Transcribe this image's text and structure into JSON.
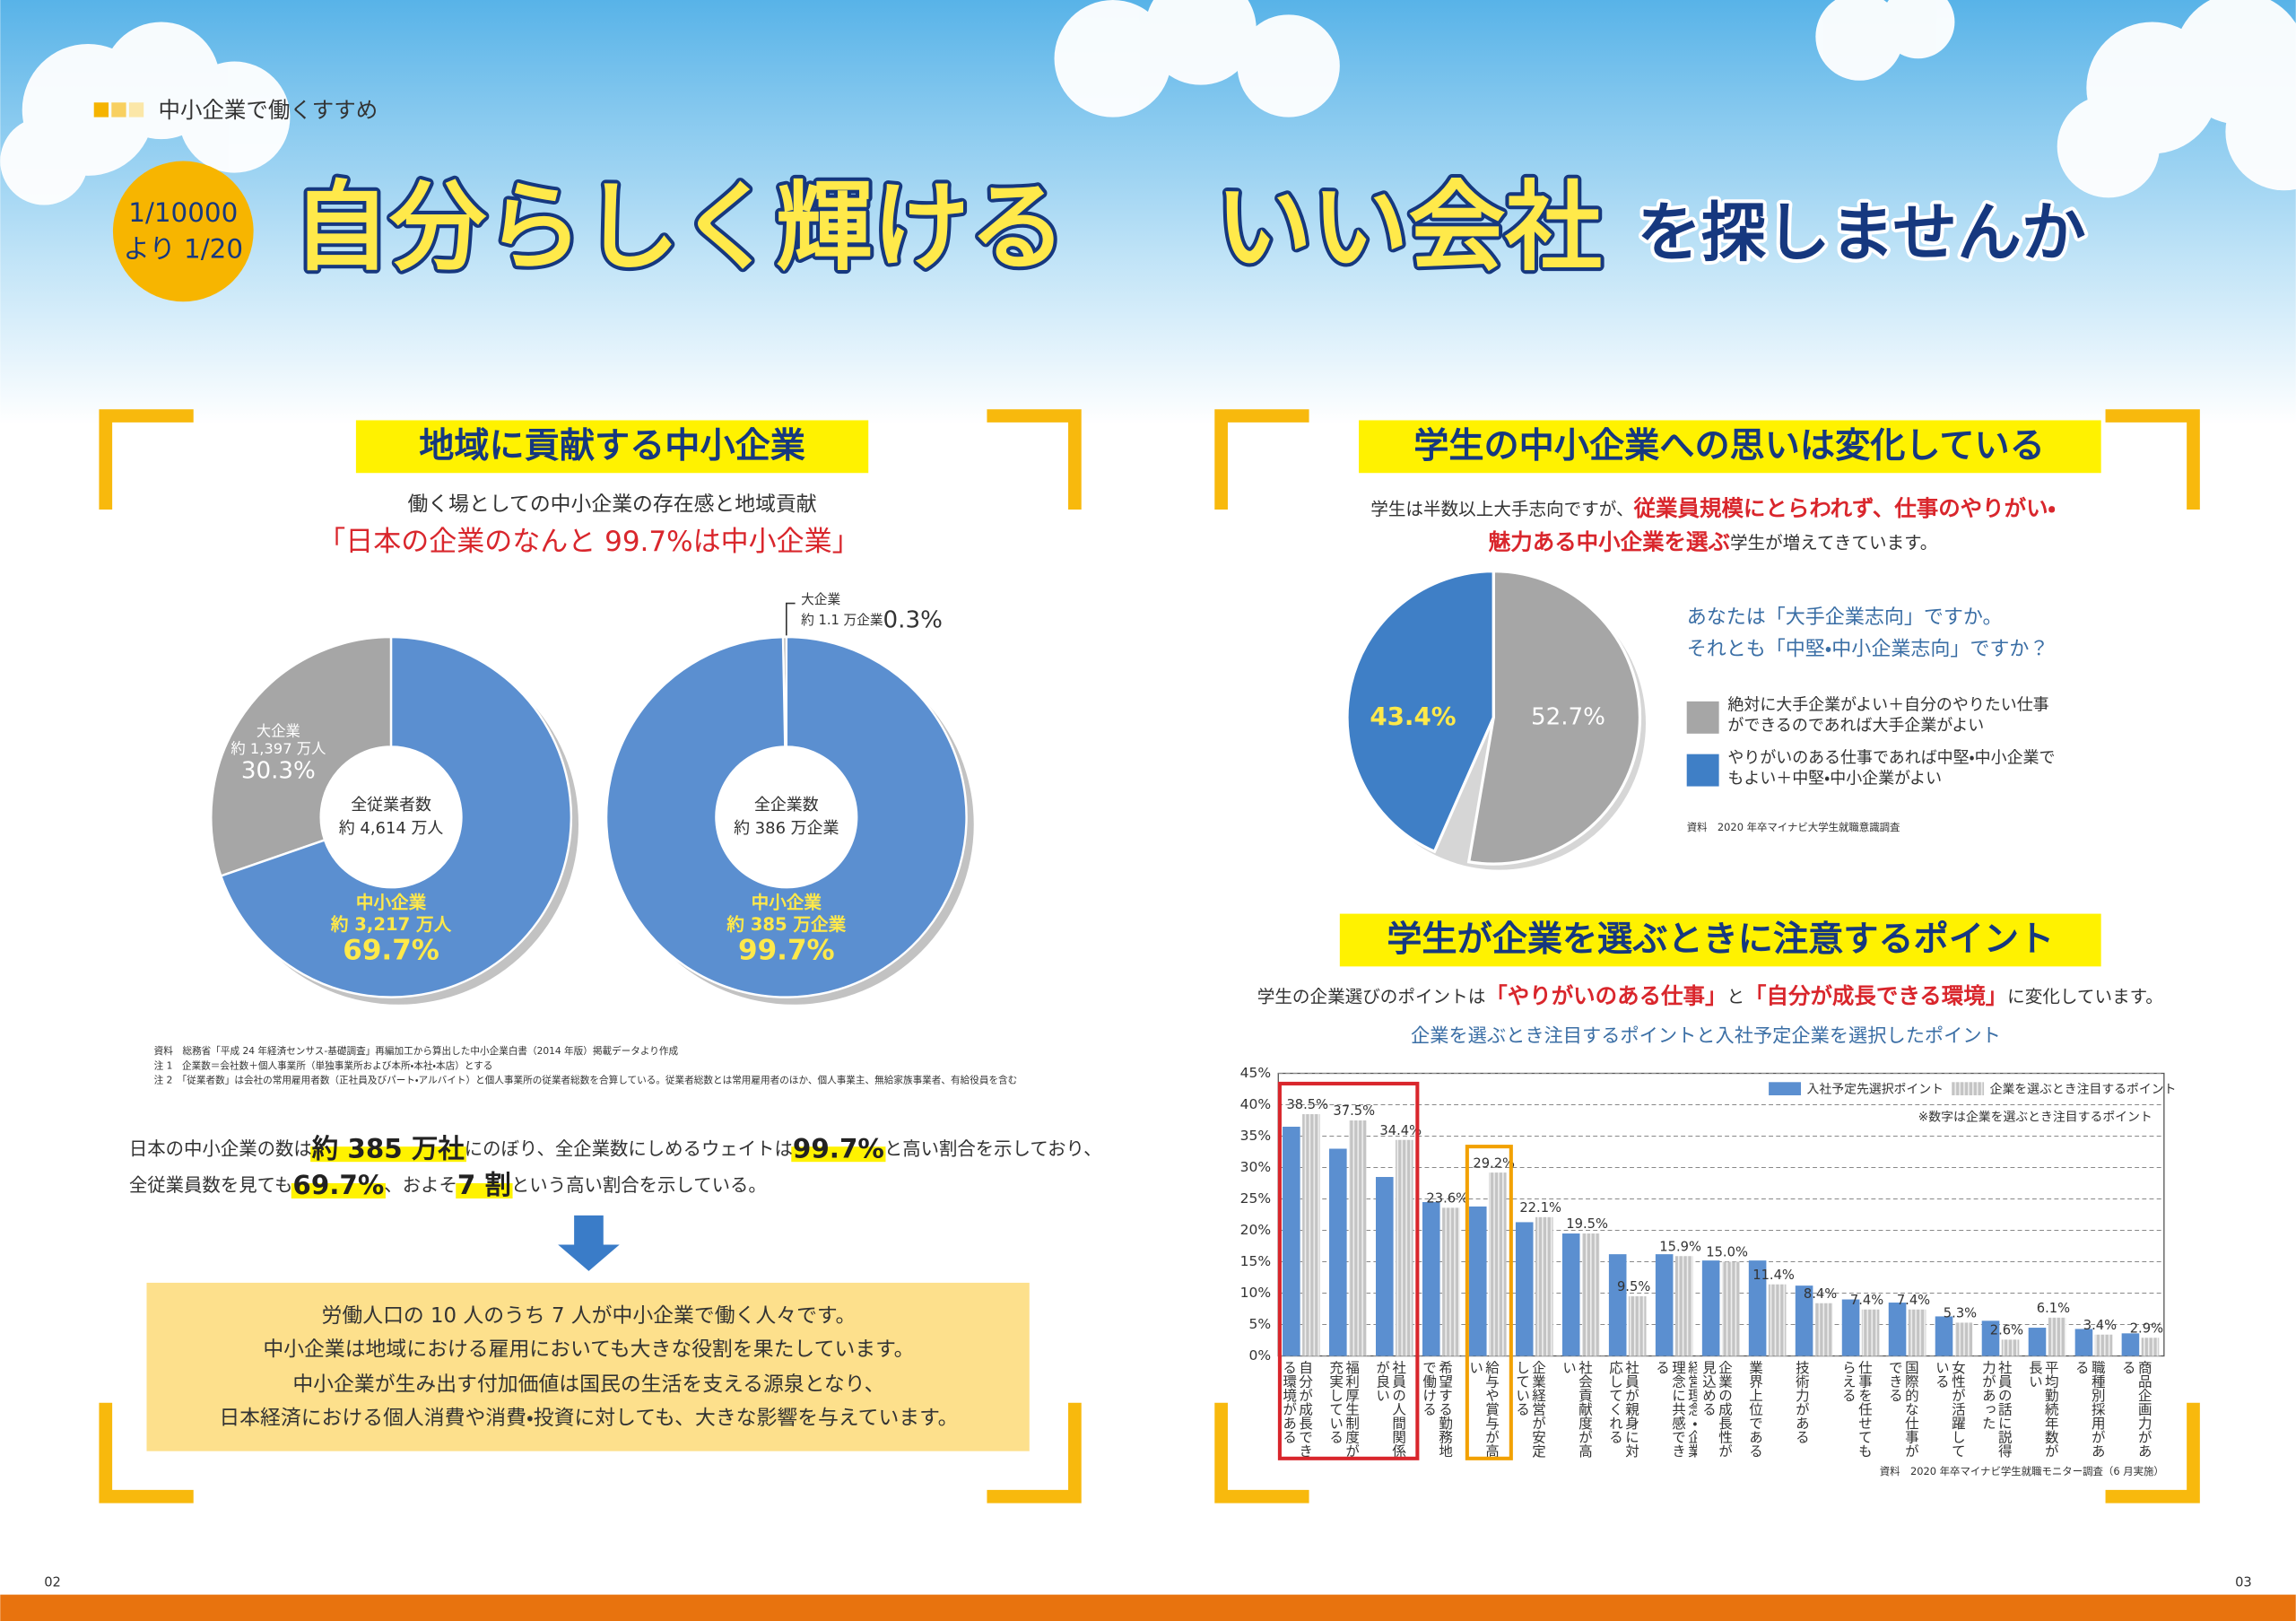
{
  "header": {
    "section": "中小企業で働くすすめ",
    "badge": [
      "1/10000",
      "より 1/20"
    ],
    "title": [
      "自分らしく輝ける",
      "いい会社",
      "を探しませんか"
    ]
  },
  "left": {
    "heading": "地域に貢献する中小企業",
    "subtitle": "働く場としての中小企業の存在感と地域貢献",
    "highlight": "「日本の企業のなんと 99.7%は中小企業」",
    "notes": [
      "資料　総務省「平成 24 年経済センサス‐基礎調査」再編加工から算出した中小企業白書（2014 年版）掲載データより作成",
      "注 1　企業数＝会社数＋個人事業所（単独事業所および本所・本社・本店）とする",
      "注 2　「従業者数」は会社の常用雇用者数（正社員及びパート・アルバイト）と個人事業所の従業者総数を合算している。従業者総数とは常用雇用者のほか、個人事業主、無給家族事業者、有給役員を含む"
    ],
    "paragraph": [
      [
        "日本の中小企業の数は",
        "約 385 万社",
        "にのぼり、全企業数にしめるウェイトは",
        "99.7%",
        "と高い割合を示しており、"
      ],
      [
        "全従業員数を見ても",
        "69.7%",
        "、およそ",
        "7 割",
        "という高い割合を示している。"
      ]
    ],
    "box": [
      "労働人口の 10 人のうち 7 人が中小企業で働く人々です。",
      "中小企業は地域における雇用においても大きな役割を果たしています。",
      "中小企業が生み出す付加価値は国民の生活を支える源泉となり、",
      "日本経済における個人消費や消費・投資に対しても、大きな影響を与えています。"
    ]
  },
  "right": {
    "heading": "学生の中小企業への思いは変化している",
    "intro": [
      [
        "学生は半数以上大手志向ですが、",
        "従業員規模にとらわれず、仕事のやりがい・"
      ],
      [
        "魅力ある中小企業を選ぶ",
        "学生が増えてきています。"
      ]
    ],
    "question": [
      "あなたは「大手企業志向」ですか。",
      "それとも「中堅・中小企業志向」ですか？"
    ],
    "pie_source": "資料　2020 年卒マイナビ大学生就職意識調査",
    "heading2": "学生が企業を選ぶときに注意するポイント",
    "intro2": [
      "学生の企業選びのポイントは",
      "「やりがいのある仕事」",
      "と",
      "「自分が成長できる環境」",
      "に変化しています。"
    ]
  },
  "page_numbers": [
    "02",
    "03"
  ],
  "chart_data": [
    {
      "type": "donut",
      "center_label": [
        "全従業者数",
        "約 4,614 万人"
      ],
      "categories": [
        "大企業",
        "中小企業"
      ],
      "amounts": [
        "約 1,397 万人",
        "約 3,217 万人"
      ],
      "values": [
        30.3,
        69.7
      ],
      "value_labels": [
        "30.3%",
        "69.7%"
      ],
      "colors": [
        "#a6a6a6",
        "#5b8fd0"
      ]
    },
    {
      "type": "donut",
      "center_label": [
        "全企業数",
        "約 386 万企業"
      ],
      "categories": [
        "大企業",
        "中小企業"
      ],
      "amounts": [
        "約 1.1 万企業",
        "約 385 万企業"
      ],
      "values": [
        0.3,
        99.7
      ],
      "value_labels": [
        "0.3%",
        "99.7%"
      ],
      "colors": [
        "#a6a6a6",
        "#5b8fd0"
      ]
    },
    {
      "type": "pie",
      "categories": [
        "絶対に大手企業がよい＋自分のやりたい仕事ができるのであれば大手企業がよい",
        "やりがいのある仕事であれば中堅・中小企業でもよい＋中堅・中小企業がよい"
      ],
      "values": [
        52.7,
        43.4
      ],
      "value_labels": [
        "52.7%",
        "43.4%"
      ],
      "colors": [
        "#a6a6a6",
        "#3f7fc6"
      ]
    },
    {
      "type": "bar",
      "title": "企業を選ぶとき注目するポイントと入社予定企業を選択したポイント",
      "note": "※数字は企業を選ぶとき注目するポイント",
      "source": "資料　2020 年卒マイナビ学生就職モニター調査（6 月実施）",
      "categories": [
        "自分が成長できる環境がある",
        "福利厚生制度が充実している",
        "社員の人間関係が良い",
        "希望する勤務地で働ける",
        "給与や賞与が高い",
        "企業経営が安定している",
        "社会貢献度が高い",
        "社員が親身に対応してくれる",
        "経営理念・企業理念に共感できる",
        "企業の成長性が見込める",
        "業界上位である",
        "技術力がある",
        "仕事を任せてもらえる",
        "国際的な仕事ができる",
        "女性が活躍している",
        "社員の話に説得力があった",
        "平均勤続年数が長い",
        "職種別採用がある",
        "商品企画力がある"
      ],
      "series": [
        {
          "name": "入社予定先選択ポイント",
          "color": "#5b8fd0",
          "values": [
            36.5,
            33.0,
            28.5,
            24.5,
            23.8,
            21.3,
            19.5,
            16.2,
            16.2,
            15.2,
            15.2,
            11.2,
            9.0,
            8.5,
            6.3,
            5.6,
            4.5,
            4.3,
            3.6
          ]
        },
        {
          "name": "企業を選ぶとき注目するポイント",
          "color": "#c4c4c4",
          "values": [
            38.5,
            37.5,
            34.4,
            23.6,
            29.2,
            22.1,
            19.5,
            9.5,
            15.9,
            15.0,
            11.4,
            8.4,
            7.4,
            7.4,
            5.3,
            2.6,
            6.1,
            3.4,
            2.9
          ],
          "value_labels": [
            "38.5%",
            "37.5%",
            "34.4%",
            "23.6%",
            "29.2%",
            "22.1%",
            "19.5%",
            "9.5%",
            "15.9%",
            "15.0%",
            "11.4%",
            "8.4%",
            "7.4%",
            "7.4%",
            "5.3%",
            "2.6%",
            "6.1%",
            "3.4%",
            "2.9%"
          ]
        }
      ],
      "ylim": [
        0,
        45
      ],
      "yticks": [
        {
          "value": 0,
          "label": "0%"
        },
        {
          "value": 5,
          "label": "5%"
        },
        {
          "value": 10,
          "label": "10%"
        },
        {
          "value": 15,
          "label": "15%"
        },
        {
          "value": 20,
          "label": "20%"
        },
        {
          "value": 25,
          "label": "25%"
        },
        {
          "value": 30,
          "label": "30%"
        },
        {
          "value": 35,
          "label": "35%"
        },
        {
          "value": 40,
          "label": "40%"
        },
        {
          "value": 45,
          "label": "45%"
        }
      ],
      "grid": true
    }
  ]
}
